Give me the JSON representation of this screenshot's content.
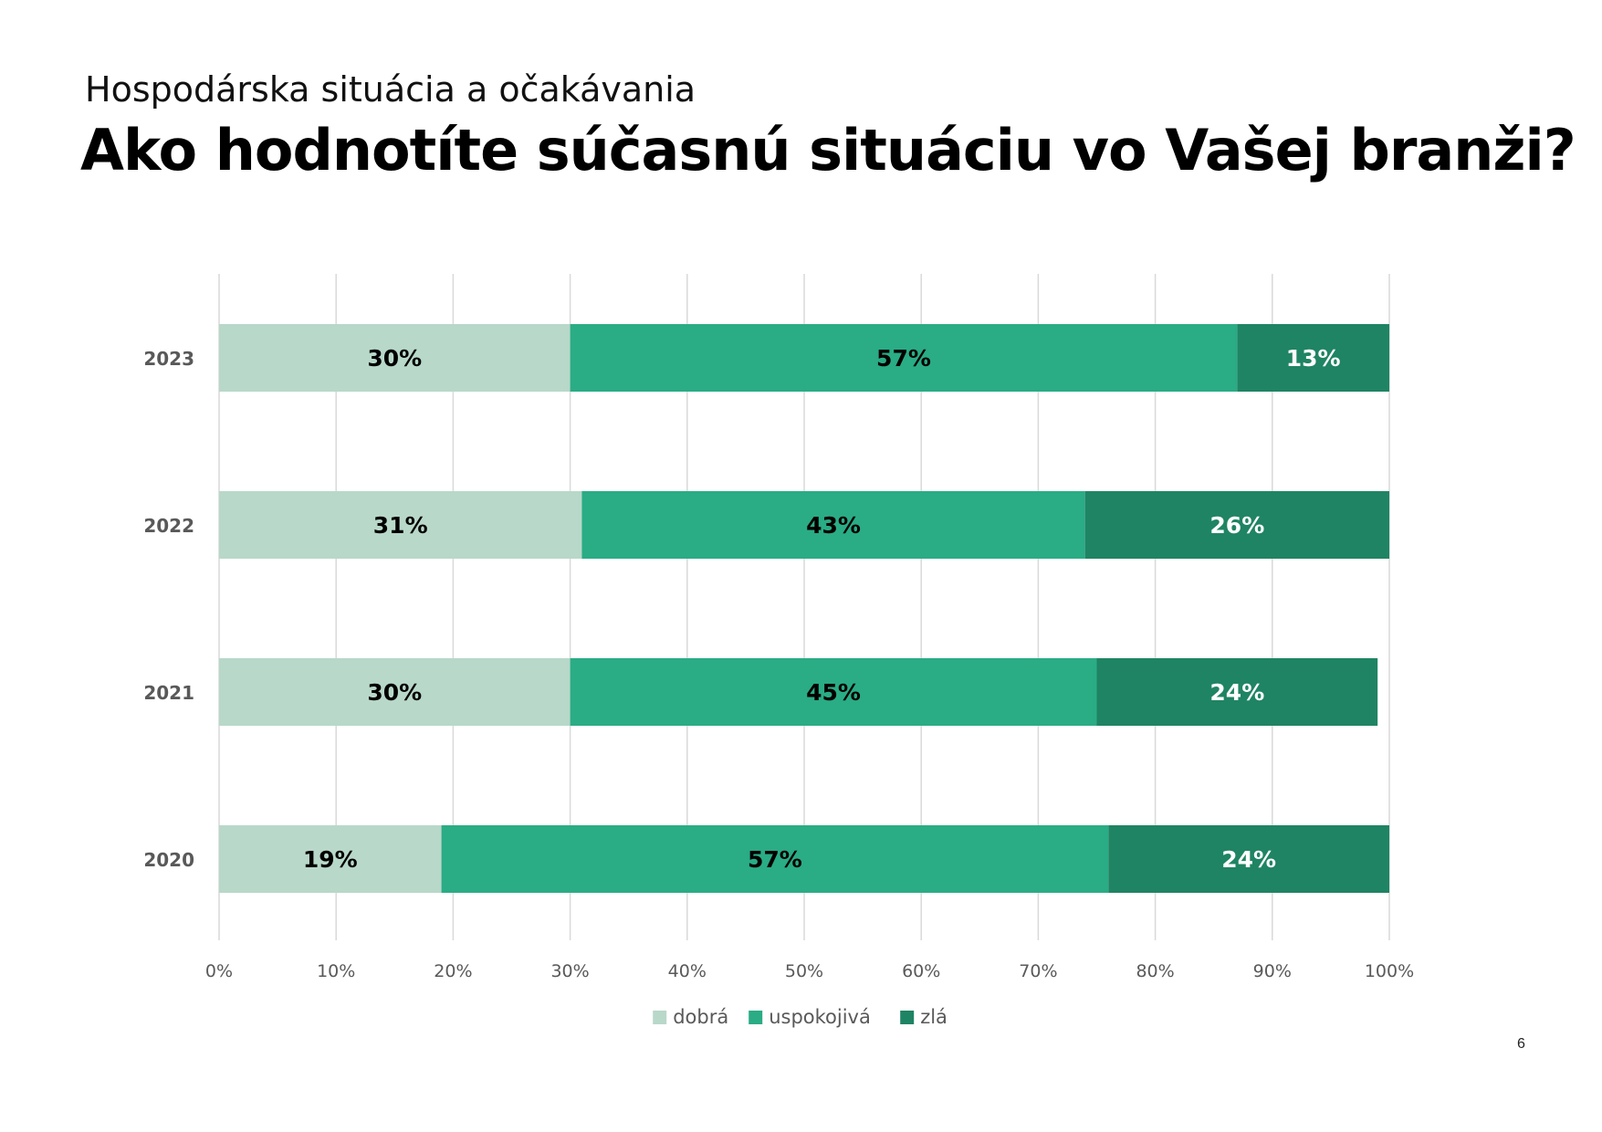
{
  "page": {
    "subtitle": "Hospodárska situácia a očakávania",
    "title": "Ako hodnotíte súčasnú situáciu vo Vašej branži?",
    "page_number": "6"
  },
  "colors": {
    "dobra": "#b8d8c9",
    "uspokojiva": "#2aac85",
    "zla": "#1f8463",
    "gridline": "#d9d9d9",
    "axis_text": "#595959"
  },
  "chart_data": {
    "type": "bar",
    "orientation": "horizontal",
    "stacked": true,
    "categories": [
      "2023",
      "2022",
      "2021",
      "2020"
    ],
    "series": [
      {
        "name": "dobrá",
        "values": [
          30,
          31,
          30,
          19
        ],
        "labels": [
          "30%",
          "31%",
          "30%",
          "19%"
        ]
      },
      {
        "name": "uspokojivá",
        "values": [
          57,
          43,
          45,
          57
        ],
        "labels": [
          "57%",
          "43%",
          "45%",
          "57%"
        ]
      },
      {
        "name": "zlá",
        "values": [
          13,
          26,
          24,
          24
        ],
        "labels": [
          "13%",
          "26%",
          "24%",
          "24%"
        ]
      }
    ],
    "xlim": [
      0,
      100
    ],
    "x_ticks": [
      "0%",
      "10%",
      "20%",
      "30%",
      "40%",
      "50%",
      "60%",
      "70%",
      "80%",
      "90%",
      "100%"
    ],
    "grid": true,
    "legend": "bottom"
  }
}
